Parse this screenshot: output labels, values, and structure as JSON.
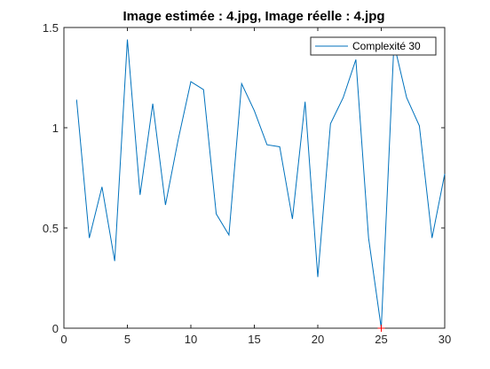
{
  "chart_data": {
    "type": "line",
    "title": "Image estimée : 4.jpg, Image réelle : 4.jpg",
    "xlabel": "",
    "ylabel": "",
    "xlim": [
      0,
      30
    ],
    "ylim": [
      0,
      1.5
    ],
    "x_ticks": [
      0,
      5,
      10,
      15,
      20,
      25,
      30
    ],
    "y_ticks": [
      0,
      0.5,
      1,
      1.5
    ],
    "x_tick_labels": [
      "0",
      "5",
      "10",
      "15",
      "20",
      "25",
      "30"
    ],
    "y_tick_labels": [
      "0",
      "0.5",
      "1",
      "1.5"
    ],
    "grid": false,
    "legend_position": "top-right",
    "series": [
      {
        "name": "Complexité 30",
        "color": "#0072bd",
        "x": [
          1,
          2,
          3,
          4,
          5,
          6,
          7,
          8,
          9,
          10,
          11,
          12,
          13,
          14,
          15,
          16,
          17,
          18,
          19,
          20,
          21,
          22,
          23,
          24,
          25,
          26,
          27,
          28,
          29,
          30
        ],
        "values": [
          1.14,
          0.45,
          0.705,
          0.335,
          1.44,
          0.665,
          1.12,
          0.615,
          0.94,
          1.23,
          1.19,
          0.57,
          0.465,
          1.22,
          1.085,
          0.915,
          0.905,
          0.545,
          1.13,
          0.255,
          1.02,
          1.15,
          1.34,
          0.45,
          0.0,
          1.42,
          1.15,
          1.01,
          0.45,
          0.77
        ]
      }
    ],
    "marker": {
      "x": 25,
      "y": 0,
      "color": "#ff0000",
      "shape": "plus"
    }
  }
}
